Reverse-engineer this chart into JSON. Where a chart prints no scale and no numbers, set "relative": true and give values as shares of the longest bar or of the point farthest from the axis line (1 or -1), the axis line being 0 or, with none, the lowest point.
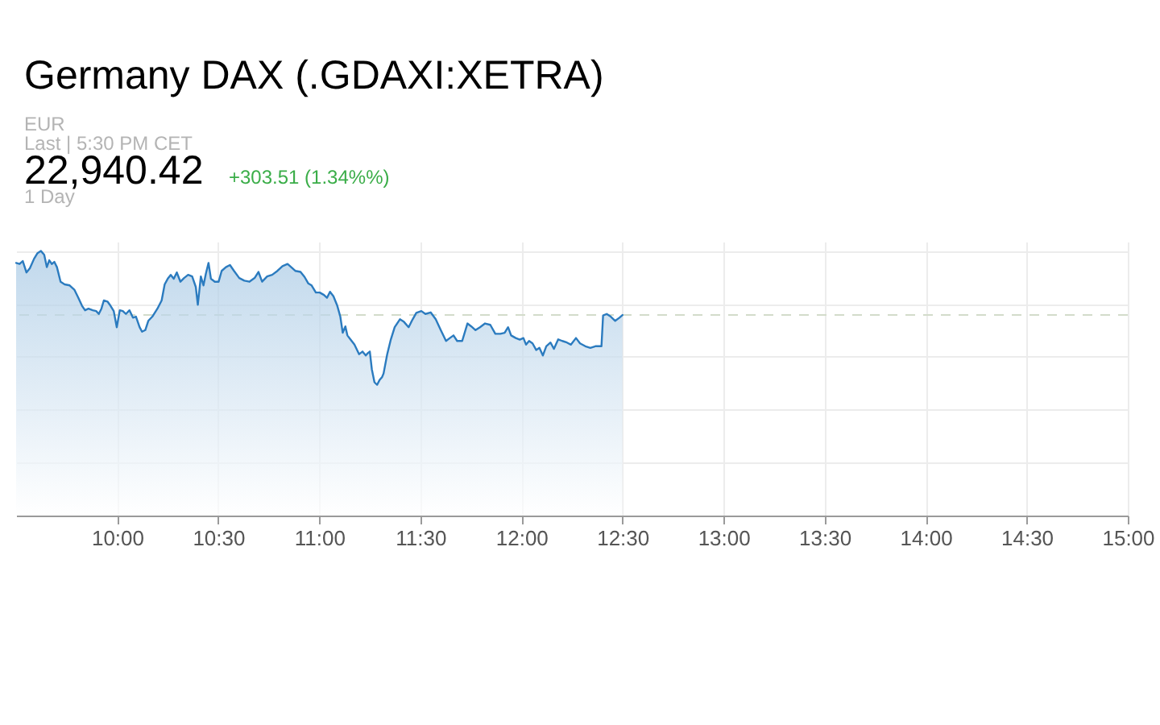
{
  "chart_data": {
    "type": "area",
    "title": "Germany DAX (.GDAXI:XETRA)",
    "annotations": [
      "EUR",
      "Last | 5:30 PM CET",
      "22,940.42",
      "+303.51 (1.34%%)",
      "1 Day"
    ],
    "x": [
      9.5,
      9.517,
      9.533,
      9.551,
      9.568,
      9.589,
      9.606,
      9.623,
      9.639,
      9.652,
      9.664,
      9.677,
      9.689,
      9.702,
      9.72,
      9.74,
      9.765,
      9.788,
      9.808,
      9.826,
      9.841,
      9.858,
      9.879,
      9.896,
      9.909,
      9.922,
      9.934,
      9.952,
      9.967,
      9.983,
      9.998,
      10.013,
      10.028,
      10.043,
      10.061,
      10.078,
      10.093,
      10.111,
      10.123,
      10.139,
      10.154,
      10.174,
      10.199,
      10.22,
      10.235,
      10.25,
      10.265,
      10.28,
      10.295,
      10.313,
      10.331,
      10.351,
      10.371,
      10.389,
      10.399,
      10.414,
      10.427,
      10.439,
      10.452,
      10.464,
      10.483,
      10.502,
      10.517,
      10.538,
      10.558,
      10.578,
      10.604,
      10.629,
      10.654,
      10.68,
      10.699,
      10.717,
      10.742,
      10.767,
      10.793,
      10.818,
      10.843,
      10.861,
      10.881,
      10.907,
      10.927,
      10.945,
      10.962,
      10.983,
      11.002,
      11.023,
      11.038,
      11.053,
      11.07,
      11.089,
      11.104,
      11.116,
      11.129,
      11.139,
      11.154,
      11.174,
      11.197,
      11.214,
      11.23,
      11.24,
      11.25,
      11.26,
      11.273,
      11.286,
      11.298,
      11.311,
      11.318,
      11.336,
      11.354,
      11.373,
      11.399,
      11.419,
      11.442,
      11.462,
      11.48,
      11.505,
      11.525,
      11.551,
      11.576,
      11.601,
      11.627,
      11.646,
      11.664,
      11.682,
      11.707,
      11.733,
      11.752,
      11.773,
      11.795,
      11.82,
      11.846,
      11.871,
      11.896,
      11.917,
      11.934,
      11.949,
      11.972,
      11.992,
      12.01,
      12.023,
      12.038,
      12.055,
      12.073,
      12.089,
      12.106,
      12.123,
      12.144,
      12.161,
      12.182,
      12.202,
      12.225,
      12.245,
      12.27,
      12.29,
      12.316,
      12.341,
      12.366,
      12.396,
      12.404,
      12.422,
      12.442,
      12.464,
      12.485,
      12.5
    ],
    "series": [
      {
        "color": "#2b7bbf",
        "values": [
          0.955,
          0.951,
          0.962,
          0.919,
          0.935,
          0.971,
          0.992,
          1.0,
          0.986,
          0.939,
          0.965,
          0.951,
          0.959,
          0.939,
          0.884,
          0.874,
          0.87,
          0.854,
          0.823,
          0.793,
          0.776,
          0.782,
          0.776,
          0.773,
          0.762,
          0.782,
          0.813,
          0.809,
          0.793,
          0.773,
          0.712,
          0.776,
          0.773,
          0.762,
          0.776,
          0.748,
          0.752,
          0.712,
          0.695,
          0.701,
          0.736,
          0.752,
          0.782,
          0.813,
          0.874,
          0.895,
          0.91,
          0.895,
          0.919,
          0.884,
          0.898,
          0.91,
          0.904,
          0.864,
          0.797,
          0.904,
          0.87,
          0.915,
          0.955,
          0.895,
          0.884,
          0.884,
          0.925,
          0.939,
          0.947,
          0.925,
          0.898,
          0.888,
          0.884,
          0.898,
          0.921,
          0.884,
          0.904,
          0.91,
          0.925,
          0.943,
          0.951,
          0.939,
          0.925,
          0.921,
          0.902,
          0.878,
          0.87,
          0.843,
          0.843,
          0.834,
          0.823,
          0.846,
          0.829,
          0.793,
          0.752,
          0.691,
          0.715,
          0.681,
          0.666,
          0.646,
          0.61,
          0.62,
          0.605,
          0.614,
          0.62,
          0.553,
          0.504,
          0.494,
          0.512,
          0.524,
          0.537,
          0.61,
          0.666,
          0.712,
          0.742,
          0.732,
          0.712,
          0.742,
          0.766,
          0.773,
          0.762,
          0.768,
          0.742,
          0.701,
          0.66,
          0.671,
          0.681,
          0.66,
          0.66,
          0.726,
          0.715,
          0.701,
          0.712,
          0.726,
          0.721,
          0.687,
          0.687,
          0.691,
          0.712,
          0.681,
          0.671,
          0.665,
          0.671,
          0.646,
          0.66,
          0.651,
          0.626,
          0.634,
          0.605,
          0.64,
          0.654,
          0.63,
          0.666,
          0.66,
          0.654,
          0.646,
          0.671,
          0.651,
          0.64,
          0.634,
          0.64,
          0.64,
          0.756,
          0.762,
          0.752,
          0.736,
          0.748,
          0.758
        ]
      }
    ],
    "relative": true,
    "xlim": [
      9.5,
      15.0
    ],
    "xticks": [
      {
        "value": 10,
        "label": "10:00"
      },
      {
        "value": 10.5,
        "label": "10:30"
      },
      {
        "value": 11,
        "label": "11:00"
      },
      {
        "value": 11.5,
        "label": "11:30"
      },
      {
        "value": 12,
        "label": "12:00"
      },
      {
        "value": 12.5,
        "label": "12:30"
      },
      {
        "value": 13,
        "label": "13:00"
      },
      {
        "value": 13.5,
        "label": "13:30"
      },
      {
        "value": 14,
        "label": "14:00"
      },
      {
        "value": 14.5,
        "label": "14:30"
      },
      {
        "value": 15,
        "label": "15:00"
      }
    ],
    "ref_lines": [
      {
        "axis": "y",
        "value": 0.758,
        "color": "#d3dccb",
        "line_style": "dashed"
      }
    ],
    "grid": true,
    "tick_labels": "x"
  }
}
